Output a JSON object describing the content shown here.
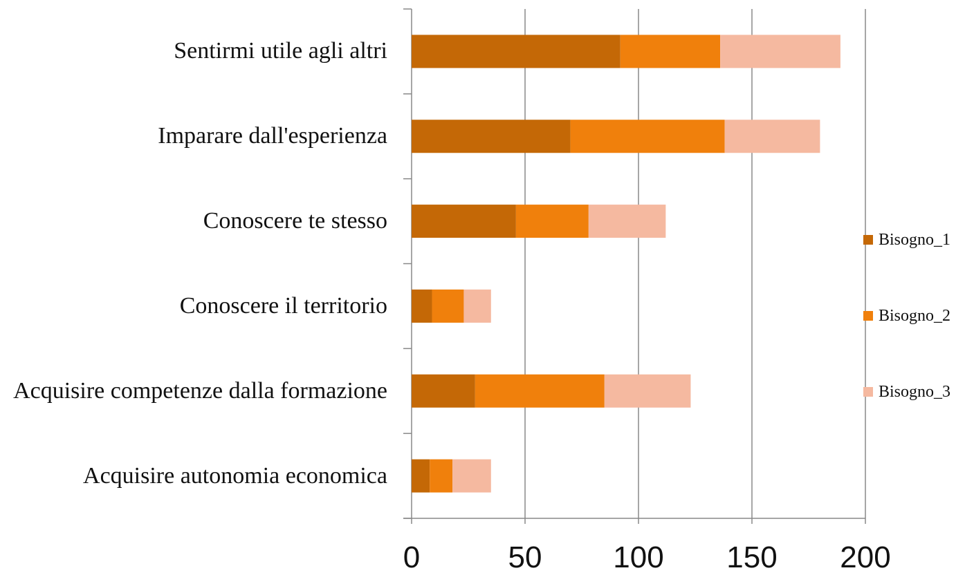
{
  "chart_data": {
    "type": "stacked_barh",
    "categories": [
      "Sentirmi utile agli altri",
      "Imparare dall'esperienza",
      "Conoscere te stesso",
      "Conoscere il territorio",
      "Acquisire competenze dalla formazione",
      "Acquisire autonomia economica"
    ],
    "series": [
      {
        "name": "Bisogno_1",
        "color": "#c46806",
        "values": [
          92,
          70,
          46,
          9,
          28,
          8
        ]
      },
      {
        "name": "Bisogno_2",
        "color": "#f0800c",
        "values": [
          44,
          68,
          32,
          14,
          57,
          10
        ]
      },
      {
        "name": "Bisogno_3",
        "color": "#f5b9a0",
        "values": [
          53,
          42,
          34,
          12,
          38,
          17
        ]
      }
    ],
    "xlim": [
      0,
      200
    ],
    "xticks": [
      0,
      50,
      100,
      150,
      200
    ],
    "grid": true,
    "legend": "right"
  }
}
